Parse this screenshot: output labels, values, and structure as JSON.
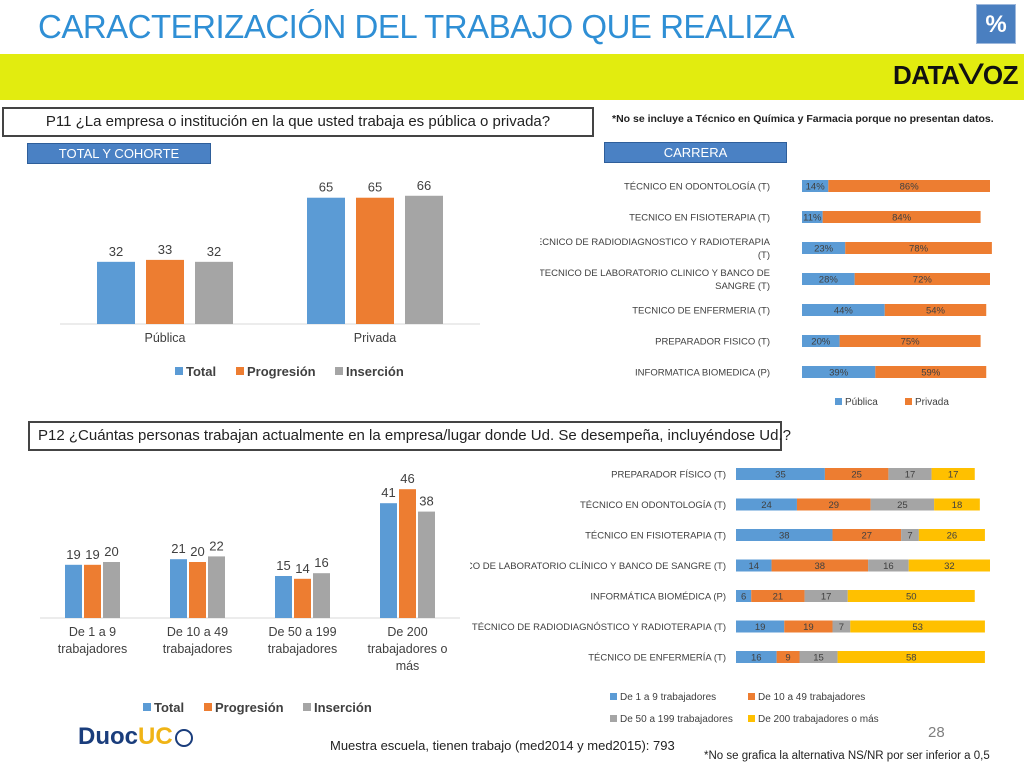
{
  "header": {
    "title": "CARACTERIZACIÓN DEL TRABAJO QUE REALIZA",
    "percent_badge": "%",
    "logo_left": "DATA",
    "logo_mark": "V",
    "logo_right": "OZ",
    "brand_yellow": "#e2ec0f",
    "title_color": "#2f8fd5"
  },
  "q11": {
    "question": "P11 ¿La empresa o institución en la que usted trabaja es pública o privada?",
    "note": "*No se incluye a  Técnico en Química y Farmacia porque no presentan datos."
  },
  "q12": {
    "question": "P12 ¿Cuántas personas trabajan actualmente en la empresa/lugar donde Ud. Se desempeña, incluyéndose Ud.?"
  },
  "tags": {
    "total_cohorte": "TOTAL Y COHORTE",
    "carrera": "CARRERA"
  },
  "footer": {
    "page": "28",
    "sample": "Muestra escuela, tienen trabajo (med2014 y med2015): 793",
    "note": "*No se grafica la alternativa NS/NR por ser inferior a 0,5",
    "duoc_a": "Duoc",
    "duoc_b": "UC"
  },
  "chart_data": [
    {
      "id": "c1",
      "type": "bar",
      "categories": [
        "Pública",
        "Privada"
      ],
      "series": [
        {
          "name": "Total",
          "values": [
            32,
            65
          ],
          "color": "#5b9bd5"
        },
        {
          "name": "Progresión",
          "values": [
            33,
            65
          ],
          "color": "#ed7d31"
        },
        {
          "name": "Inserción",
          "values": [
            32,
            66
          ],
          "color": "#a5a5a5"
        }
      ],
      "ylim": [
        0,
        70
      ],
      "legend": "bottom"
    },
    {
      "id": "c2",
      "type": "bar",
      "orientation": "horizontal-stacked",
      "categories": [
        "TÉCNICO EN ODONTOLOGÍA (T)",
        "TECNICO EN FISIOTERAPIA (T)",
        "TECNICO DE RADIODIAGNOSTICO Y RADIOTERAPIA (T)",
        "TECNICO DE LABORATORIO CLINICO Y BANCO DE SANGRE (T)",
        "TECNICO DE ENFERMERIA (T)",
        "PREPARADOR FISICO (T)",
        "INFORMATICA BIOMEDICA (P)"
      ],
      "series": [
        {
          "name": "Pública",
          "values": [
            14,
            11,
            23,
            28,
            44,
            20,
            39
          ],
          "color": "#5b9bd5"
        },
        {
          "name": "Privada",
          "values": [
            86,
            84,
            78,
            72,
            54,
            75,
            59
          ],
          "color": "#ed7d31"
        }
      ],
      "xlim": [
        0,
        100
      ],
      "value_suffix": "%",
      "legend": "bottom"
    },
    {
      "id": "c3",
      "type": "bar",
      "categories": [
        "De 1 a 9 trabajadores",
        "De 10 a 49 trabajadores",
        "De 50 a 199 trabajadores",
        "De 200 trabajadores o más"
      ],
      "series": [
        {
          "name": "Total",
          "values": [
            19,
            21,
            15,
            41
          ],
          "color": "#5b9bd5"
        },
        {
          "name": "Progresión",
          "values": [
            19,
            20,
            14,
            46
          ],
          "color": "#ed7d31"
        },
        {
          "name": "Inserción",
          "values": [
            20,
            22,
            16,
            38
          ],
          "color": "#a5a5a5"
        }
      ],
      "ylim": [
        0,
        50
      ],
      "legend": "bottom"
    },
    {
      "id": "c4",
      "type": "bar",
      "orientation": "horizontal-stacked",
      "categories": [
        "PREPARADOR FÍSICO (T)",
        "TÉCNICO EN ODONTOLOGÍA (T)",
        "TÉCNICO EN FISIOTERAPIA (T)",
        "TÉCNICO DE LABORATORIO CLÍNICO Y BANCO DE SANGRE (T)",
        "INFORMÁTICA BIOMÉDICA (P)",
        "TÉCNICO DE RADIODIAGNÓSTICO Y RADIOTERAPIA (T)",
        "TÉCNICO DE ENFERMERÍA (T)"
      ],
      "series": [
        {
          "name": "De 1 a 9 trabajadores",
          "values": [
            35,
            24,
            38,
            14,
            6,
            19,
            16
          ],
          "color": "#5b9bd5"
        },
        {
          "name": "De 10 a 49  trabajadores",
          "values": [
            25,
            29,
            27,
            38,
            21,
            19,
            9
          ],
          "color": "#ed7d31"
        },
        {
          "name": "De 50 a 199 trabajadores",
          "values": [
            17,
            25,
            7,
            16,
            17,
            7,
            15
          ],
          "color": "#a5a5a5"
        },
        {
          "name": "De 200 trabajadores o más",
          "values": [
            17,
            18,
            26,
            32,
            50,
            53,
            58
          ],
          "color": "#ffc000"
        }
      ],
      "xlim": [
        0,
        100
      ],
      "legend": "bottom"
    }
  ]
}
